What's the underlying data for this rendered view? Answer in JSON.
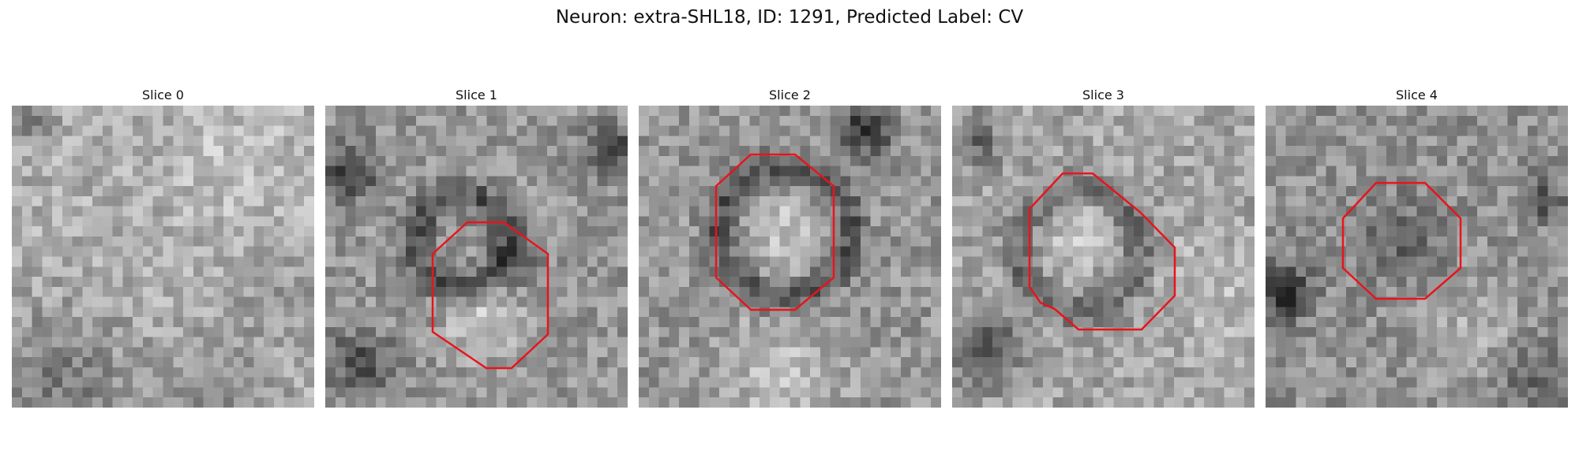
{
  "figure": {
    "title": "Neuron: extra-SHL18, ID: 1291, Predicted Label: CV"
  },
  "colors": {
    "roi_outline": "#e8141c",
    "colormap": "gray"
  },
  "slices": [
    {
      "title": "Slice 0",
      "has_roi": false
    },
    {
      "title": "Slice 1",
      "has_roi": true
    },
    {
      "title": "Slice 2",
      "has_roi": true
    },
    {
      "title": "Slice 3",
      "has_roi": true
    },
    {
      "title": "Slice 4",
      "has_roi": true
    }
  ]
}
